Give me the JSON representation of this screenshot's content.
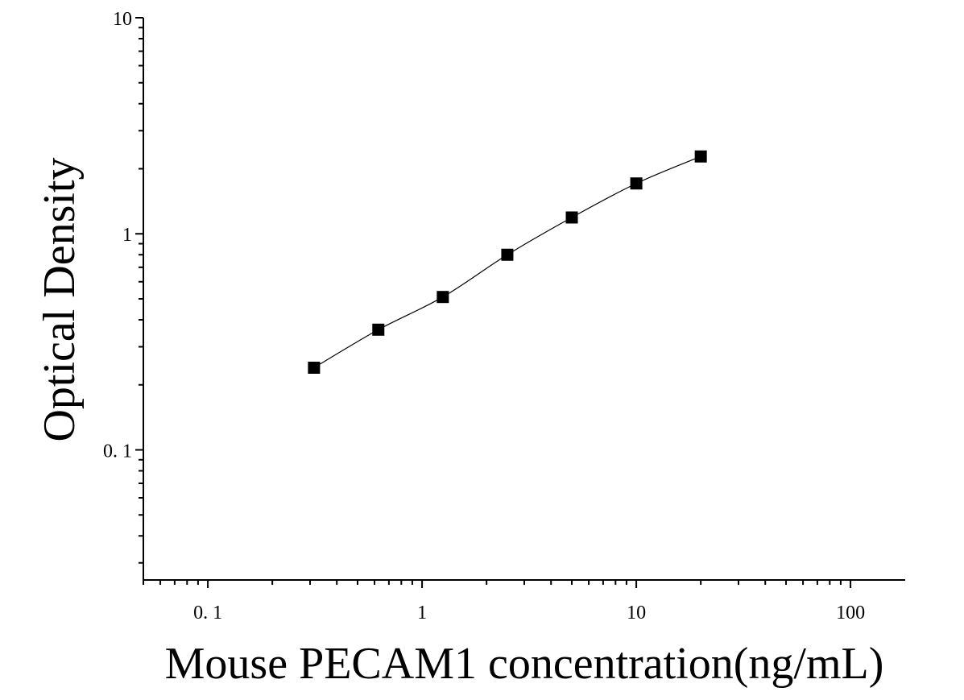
{
  "chart_data": {
    "type": "scatter",
    "xlabel": "Mouse PECAM1 concentration(ng/mL)",
    "ylabel": "Optical Density",
    "x_scale": "log",
    "y_scale": "log",
    "xlim": [
      0.05,
      180
    ],
    "ylim": [
      0.025,
      10
    ],
    "x_ticks": [
      {
        "value": 0.1,
        "label": "0. 1"
      },
      {
        "value": 1,
        "label": "1"
      },
      {
        "value": 10,
        "label": "10"
      },
      {
        "value": 100,
        "label": "100"
      }
    ],
    "y_ticks": [
      {
        "value": 0.1,
        "label": "0. 1"
      },
      {
        "value": 1,
        "label": "1"
      },
      {
        "value": 10,
        "label": "10"
      }
    ],
    "grid": false,
    "legend": "none",
    "series": [
      {
        "marker": "square",
        "color": "#000000",
        "x": [
          0.313,
          0.625,
          1.25,
          2.5,
          5,
          10,
          20
        ],
        "y": [
          0.24,
          0.36,
          0.51,
          0.8,
          1.19,
          1.71,
          2.28
        ],
        "fit_curve": true
      }
    ]
  }
}
